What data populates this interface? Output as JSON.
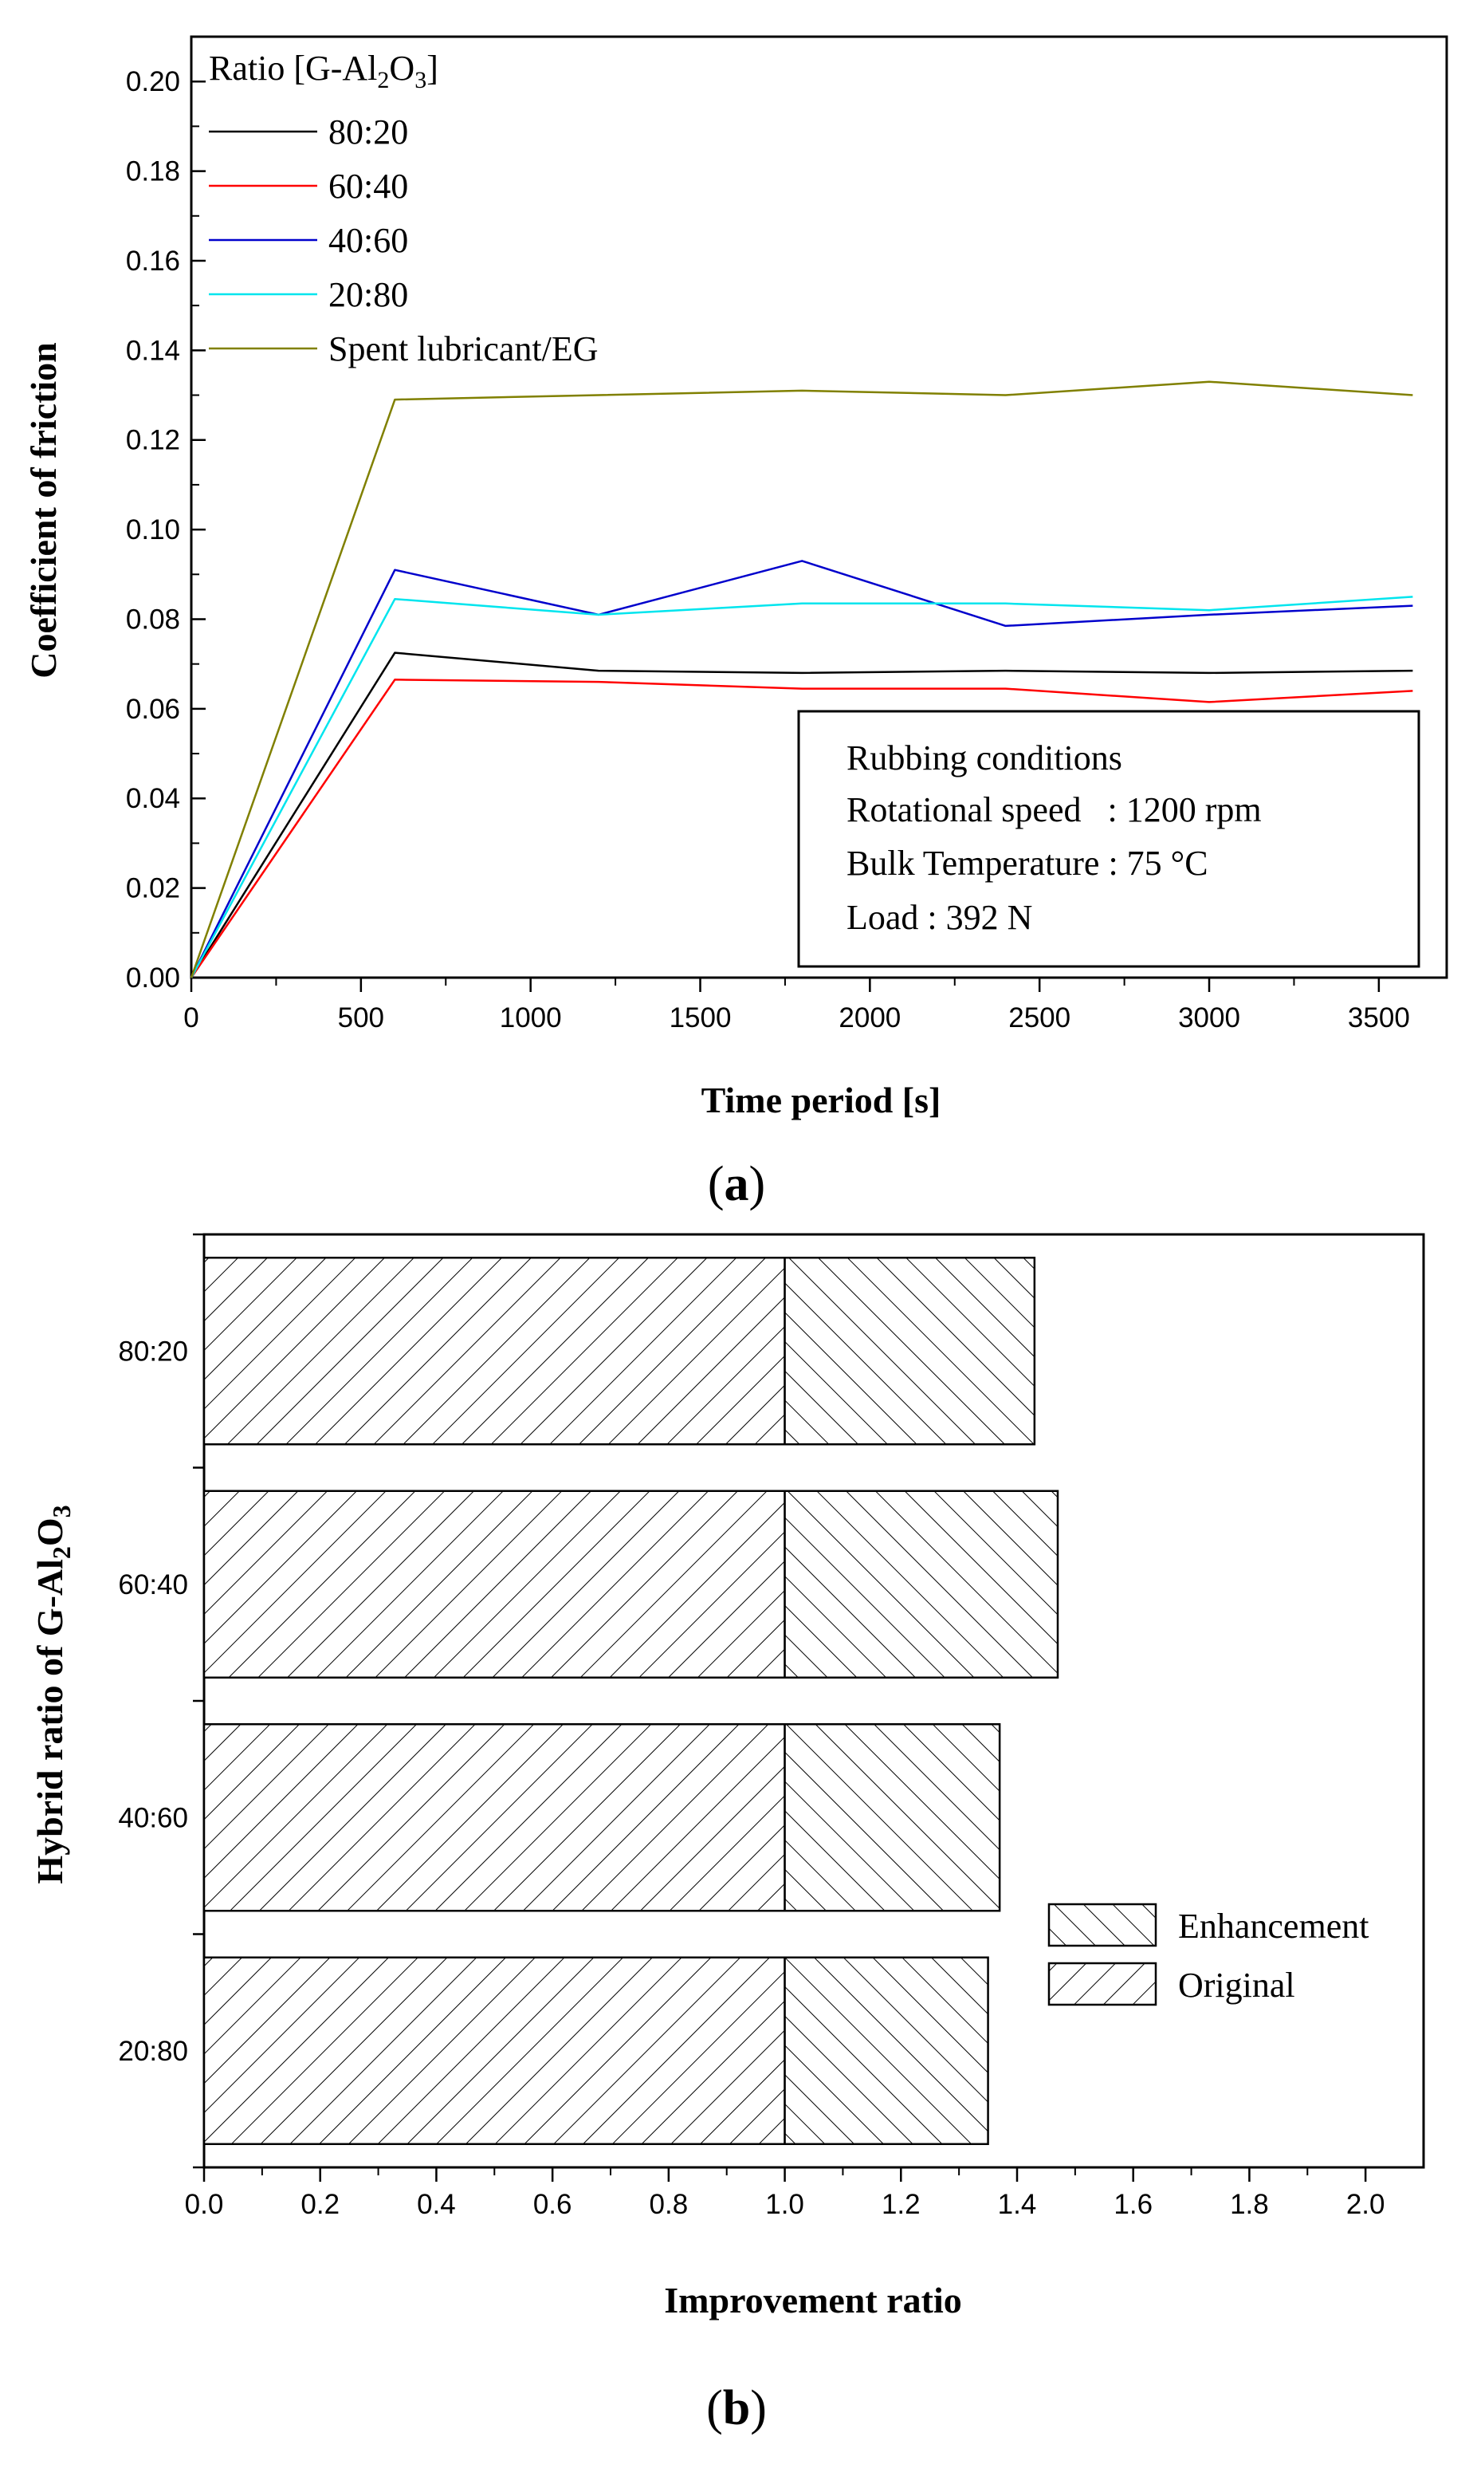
{
  "chart_data": [
    {
      "type": "line",
      "panel_label": "a",
      "title": "",
      "xlabel": "Time period [s]",
      "ylabel": "Coefficient of friction",
      "xlim": [
        0,
        3700
      ],
      "ylim": [
        0,
        0.21
      ],
      "xticks": [
        "0",
        "500",
        "1000",
        "1500",
        "2000",
        "2500",
        "3000",
        "3500"
      ],
      "yticks": [
        "0.00",
        "0.02",
        "0.04",
        "0.06",
        "0.08",
        "0.10",
        "0.12",
        "0.14",
        "0.16",
        "0.18",
        "0.20"
      ],
      "legend": {
        "title": "Ratio [G-Al2O3]",
        "position": "top-left"
      },
      "x": [
        0,
        600,
        1200,
        1800,
        2400,
        3000,
        3600
      ],
      "series": [
        {
          "name": "80:20",
          "color": "#000000",
          "values": [
            0,
            0.0725,
            0.0685,
            0.068,
            0.0685,
            0.068,
            0.0685
          ]
        },
        {
          "name": "60:40",
          "color": "#ff0000",
          "values": [
            0,
            0.0665,
            0.066,
            0.0645,
            0.0645,
            0.0615,
            0.064
          ]
        },
        {
          "name": "40:60",
          "color": "#0000cc",
          "values": [
            0,
            0.091,
            0.081,
            0.093,
            0.0785,
            0.081,
            0.083
          ]
        },
        {
          "name": "20:80",
          "color": "#00e5ee",
          "values": [
            0,
            0.0845,
            0.081,
            0.0835,
            0.0835,
            0.082,
            0.085
          ]
        },
        {
          "name": "Spent lubricant/EG",
          "color": "#808000",
          "values": [
            0,
            0.129,
            0.13,
            0.131,
            0.13,
            0.133,
            0.13
          ]
        }
      ],
      "annotation": {
        "heading": "Rubbing conditions",
        "speed": "Rotational speed   : 1200 rpm",
        "temperature": "Bulk Temperature : 75 °C",
        "load": "Load : 392 N"
      }
    },
    {
      "type": "bar",
      "orientation": "horizontal",
      "stacked": true,
      "panel_label": "b",
      "title": "",
      "xlabel": "Improvement ratio",
      "ylabel": "Hybrid ratio of G-Al2O3",
      "xlim": [
        0,
        2.1
      ],
      "xticks": [
        "0.0",
        "0.2",
        "0.4",
        "0.6",
        "0.8",
        "1.0",
        "1.2",
        "1.4",
        "1.6",
        "1.8",
        "2.0"
      ],
      "categories": [
        "80:20",
        "60:40",
        "40:60",
        "20:80"
      ],
      "series": [
        {
          "name": "Original",
          "pattern": "forward-hatch",
          "values": [
            1.0,
            1.0,
            1.0,
            1.0
          ]
        },
        {
          "name": "Enhancement",
          "pattern": "back-hatch",
          "values": [
            0.43,
            0.47,
            0.37,
            0.35
          ]
        }
      ],
      "legend": {
        "position": "right-middle"
      }
    }
  ]
}
